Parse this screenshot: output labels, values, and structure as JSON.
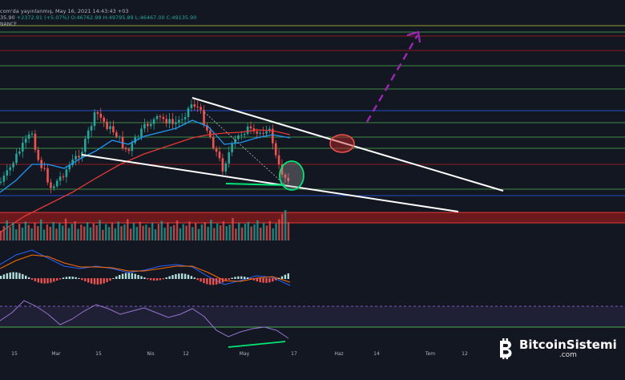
{
  "header": {
    "line_prefix": "com'da yayınlanmış, May 16, 2021 14:43:43 +03",
    "price_left": "35.90",
    "change": "+2372.91 (+5.07%)",
    "ohlc": "O:46762.99 H:49795.89 L:46467.00 C:49135.90",
    "source": "NANCE"
  },
  "logo": {
    "name": "BitcoinSistemi",
    "domain": ".com"
  },
  "colors": {
    "background": "#131722",
    "up": "#26a69a",
    "down": "#ef5350",
    "trendline": "#ffffff",
    "projection": "#9c27b0",
    "support": "#00e676",
    "hline_blue": "#2962ff",
    "hline_green": "#4caf50",
    "hline_red": "#b71c1c",
    "hline_yellow": "#c0ca33"
  },
  "chart_data": [
    {
      "type": "candlestick",
      "title": "",
      "x_ticks": [
        "15",
        "Mar",
        "15",
        "Nis",
        "12",
        "May",
        "17",
        "Haz",
        "14",
        "Tem",
        "12"
      ],
      "indicators": [
        "EMA (blue)",
        "EMA (red)"
      ],
      "annotations": [
        "descending wedge upper trendline",
        "descending wedge lower trendline",
        "breakout circle on upper line",
        "support circle at lower line",
        "dashed purple breakout projection arrow",
        "green support line"
      ],
      "shaded_zone": "red band below lower trendline"
    },
    {
      "type": "bar",
      "title": "",
      "series": [
        {
          "values": [
            0.32,
            0.48,
            0.66,
            0.44,
            0.59,
            0.37,
            0.55,
            0.42,
            0.62,
            0.51,
            0.4,
            0.58,
            0.47,
            0.69,
            0.36,
            0.53,
            0.45,
            0.61,
            0.39,
            0.57,
            0.49,
            0.72,
            0.41,
            0.55,
            0.63,
            0.38,
            0.52,
            0.46,
            0.6,
            0.43,
            0.56,
            0.5,
            0.67,
            0.35,
            0.54,
            0.44,
            0.58,
            0.4,
            0.62,
            0.47,
            0.53,
            0.7,
            0.39,
            0.57,
            0.45,
            0.61,
            0.48,
            0.52,
            0.43,
            0.59,
            0.37,
            0.55,
            0.64,
            0.42,
            0.58,
            0.46,
            0.51,
            0.66,
            0.4,
            0.54,
            0.49,
            0.62,
            0.44,
            0.57,
            0.38,
            0.53,
            0.6,
            0.45,
            0.68,
            0.41,
            0.56,
            0.5,
            0.63,
            0.47,
            0.52,
            0.74,
            0.39,
            0.58,
            0.43,
            0.55,
            0.61,
            0.46,
            0.53,
            0.66,
            0.42,
            0.57,
            0.49,
            0.64,
            0.4,
            0.56,
            0.7,
            0.88,
            1.0,
            0.6
          ]
        }
      ]
    },
    {
      "type": "macd",
      "title": ""
    },
    {
      "type": "rsi",
      "title": ""
    }
  ]
}
